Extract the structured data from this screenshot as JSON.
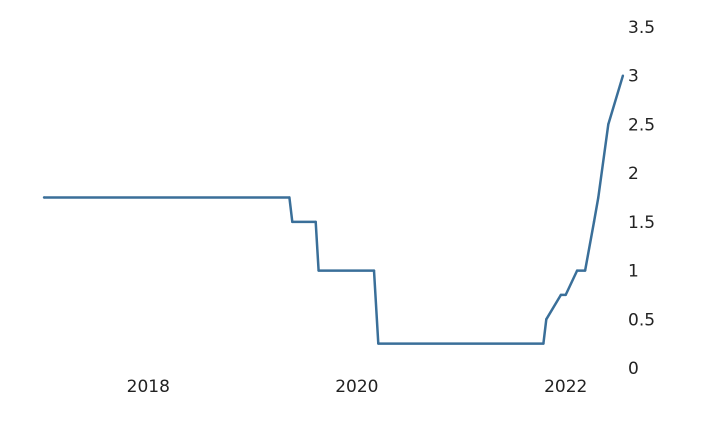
{
  "chart_data": {
    "type": "line",
    "title": "",
    "xlabel": "",
    "ylabel": "",
    "ylim": [
      0,
      3.5
    ],
    "xlim": [
      "2017-01-01",
      "2022-07-31"
    ],
    "y_ticks": [
      "0",
      "0.5",
      "1",
      "1.5",
      "2",
      "2.5",
      "3",
      "3.5"
    ],
    "x_ticks": [
      "2018",
      "2020",
      "2022"
    ],
    "y_axis_side": "right",
    "grid": false,
    "legend": "none",
    "line_color": "#3a6f99",
    "series": [
      {
        "x": [
          "2017-01-01",
          "2019-05-10",
          "2019-05-20",
          "2019-08-10",
          "2019-08-20",
          "2020-03-01",
          "2020-03-16",
          "2021-10-15",
          "2021-10-25",
          "2021-12-15",
          "2022-01-01",
          "2022-02-10",
          "2022-03-10",
          "2022-04-10",
          "2022-04-25",
          "2022-05-30",
          "2022-07-20"
        ],
        "values": [
          1.75,
          1.75,
          1.5,
          1.5,
          1.0,
          1.0,
          0.25,
          0.25,
          0.5,
          0.75,
          0.75,
          1.0,
          1.0,
          1.5,
          1.75,
          2.5,
          3.0
        ]
      }
    ]
  }
}
